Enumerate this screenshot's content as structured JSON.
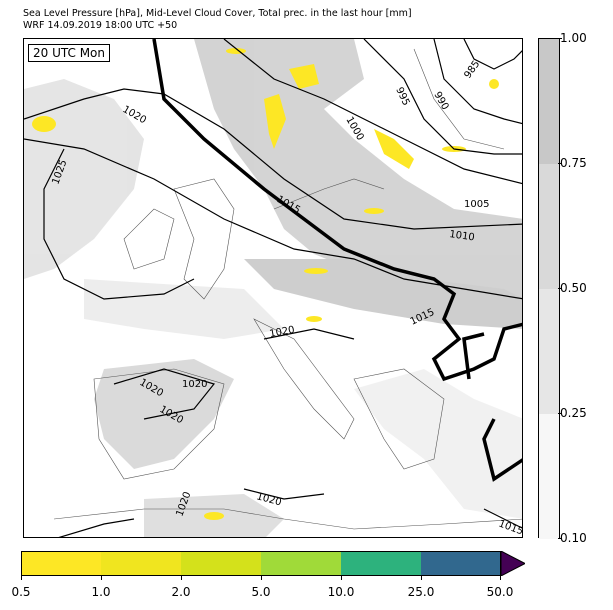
{
  "title_line1": "Sea Level Pressure [hPa], Mid-Level Cloud Cover, Total prec. in the last hour [mm]",
  "title_line2": "WRF 14.09.2019 18:00 UTC +50",
  "time_label": "20 UTC Mon",
  "isobar_labels": [
    "1020",
    "1025",
    "1015",
    "1000",
    "995",
    "990",
    "985",
    "1005",
    "1010",
    "1015",
    "1020",
    "1020",
    "1020",
    "1020",
    "1020",
    "1020",
    "1015"
  ],
  "cloud_colorbar": {
    "ticks": [
      "0.10",
      "0.25",
      "0.50",
      "0.75",
      "1.00"
    ],
    "colors": [
      "#f7f7f7",
      "#e6e6e6",
      "#d4d4d4",
      "#c6c6c6"
    ]
  },
  "precip_colorbar": {
    "ticks": [
      "0.5",
      "1.0",
      "2.0",
      "5.0",
      "10.0",
      "25.0",
      "50.0"
    ],
    "colors": [
      "#fde725",
      "#f0e51f",
      "#d4e11b",
      "#a0da39",
      "#2db27d",
      "#31688e",
      "#440154"
    ]
  }
}
